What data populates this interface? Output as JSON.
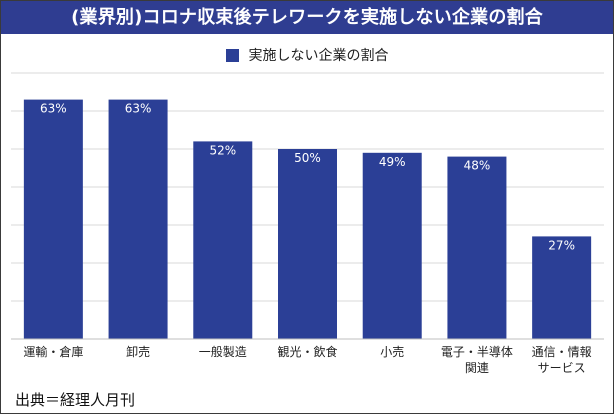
{
  "header": {
    "title": "(業界別)コロナ収束後テレワークを実施しない企業の割合"
  },
  "footer": {
    "source": "出典＝経理人月刊"
  },
  "colors": {
    "title_bg": "#2f3d91",
    "bar": "#2b3f96",
    "grid": "#d9d9d9",
    "axis": "#bfbfbf"
  },
  "chart_data": {
    "type": "bar",
    "title": "(業界別)コロナ収束後テレワークを実施しない企業の割合",
    "categories": [
      [
        "運輸・倉庫"
      ],
      [
        "卸売"
      ],
      [
        "一般製造"
      ],
      [
        "観光・飲食"
      ],
      [
        "小売"
      ],
      [
        "電子・半導体",
        "関連"
      ],
      [
        "通信・情報",
        "サービス"
      ]
    ],
    "series": [
      {
        "name": "実施しない企業の割合",
        "values": [
          63,
          63,
          52,
          50,
          49,
          48,
          27
        ]
      }
    ],
    "value_labels": [
      "63%",
      "63%",
      "52%",
      "50%",
      "49%",
      "48%",
      "27%"
    ],
    "ylim": [
      0,
      70
    ],
    "y_gridline_step": 10,
    "grid": true,
    "legend": "top-center",
    "xlabel": "",
    "ylabel": ""
  }
}
